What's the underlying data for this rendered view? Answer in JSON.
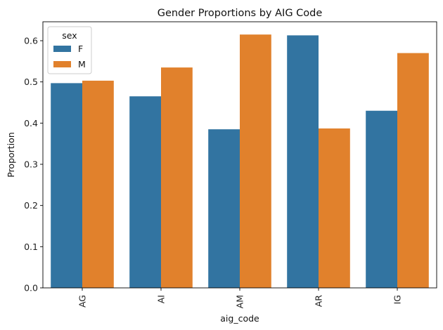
{
  "chart_data": {
    "type": "bar",
    "title": "Gender Proportions by AIG Code",
    "xlabel": "aig_code",
    "ylabel": "Proportion",
    "categories": [
      "AG",
      "AI",
      "AM",
      "AR",
      "IG"
    ],
    "ylim": [
      0,
      0.646
    ],
    "yticks": [
      "0.0",
      "0.1",
      "0.2",
      "0.3",
      "0.4",
      "0.5",
      "0.6"
    ],
    "grid": false,
    "legend": {
      "title": "sex",
      "position": "top-left"
    },
    "series": [
      {
        "name": "F",
        "color": "#3274a1",
        "values": [
          0.497,
          0.465,
          0.385,
          0.613,
          0.43
        ]
      },
      {
        "name": "M",
        "color": "#e1812c",
        "values": [
          0.503,
          0.535,
          0.615,
          0.387,
          0.57
        ]
      }
    ]
  }
}
